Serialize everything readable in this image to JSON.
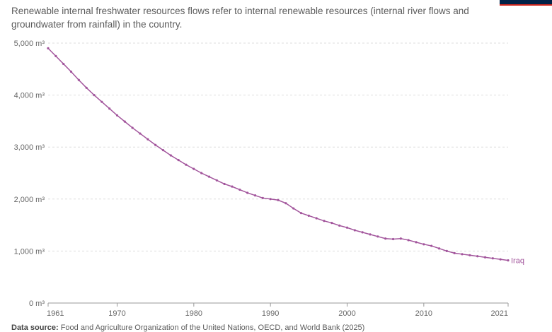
{
  "subtitle": "Renewable internal freshwater resources flows refer to internal renewable resources (internal river flows and groundwater from rainfall) in the country.",
  "source_label": "Data source:",
  "source_text": "Food and Agriculture Organization of the United Nations, OECD, and World Bank (2025)",
  "chart_data": {
    "type": "line",
    "title": "",
    "xlabel": "",
    "ylabel": "",
    "xlim": [
      1961,
      2021
    ],
    "ylim": [
      0,
      5000
    ],
    "grid": "horizontal dashed",
    "x_ticks": [
      "1961",
      "1970",
      "1980",
      "1990",
      "2000",
      "2010",
      "2021"
    ],
    "y_ticks": [
      {
        "value": 0,
        "label": "0 m³"
      },
      {
        "value": 1000,
        "label": "1,000 m³"
      },
      {
        "value": 2000,
        "label": "2,000 m³"
      },
      {
        "value": 3000,
        "label": "3,000 m³"
      },
      {
        "value": 4000,
        "label": "4,000 m³"
      },
      {
        "value": 5000,
        "label": "5,000 m³"
      }
    ],
    "series": [
      {
        "name": "Iraq",
        "color": "#a2559c",
        "x": [
          1961,
          1962,
          1963,
          1964,
          1965,
          1966,
          1967,
          1968,
          1969,
          1970,
          1971,
          1972,
          1973,
          1974,
          1975,
          1976,
          1977,
          1978,
          1979,
          1980,
          1981,
          1982,
          1983,
          1984,
          1985,
          1986,
          1987,
          1988,
          1989,
          1990,
          1991,
          1992,
          1993,
          1994,
          1995,
          1996,
          1997,
          1998,
          1999,
          2000,
          2001,
          2002,
          2003,
          2004,
          2005,
          2006,
          2007,
          2008,
          2009,
          2010,
          2011,
          2012,
          2013,
          2014,
          2015,
          2016,
          2017,
          2018,
          2019,
          2020,
          2021
        ],
        "values": [
          4900,
          4750,
          4600,
          4450,
          4290,
          4140,
          4000,
          3870,
          3740,
          3610,
          3490,
          3370,
          3260,
          3150,
          3040,
          2940,
          2840,
          2750,
          2660,
          2580,
          2500,
          2430,
          2360,
          2290,
          2240,
          2180,
          2120,
          2070,
          2020,
          2000,
          1980,
          1920,
          1820,
          1730,
          1680,
          1630,
          1580,
          1540,
          1490,
          1450,
          1400,
          1360,
          1320,
          1280,
          1240,
          1230,
          1240,
          1210,
          1170,
          1130,
          1100,
          1050,
          1000,
          960,
          940,
          920,
          900,
          880,
          860,
          840,
          820
        ]
      }
    ]
  }
}
